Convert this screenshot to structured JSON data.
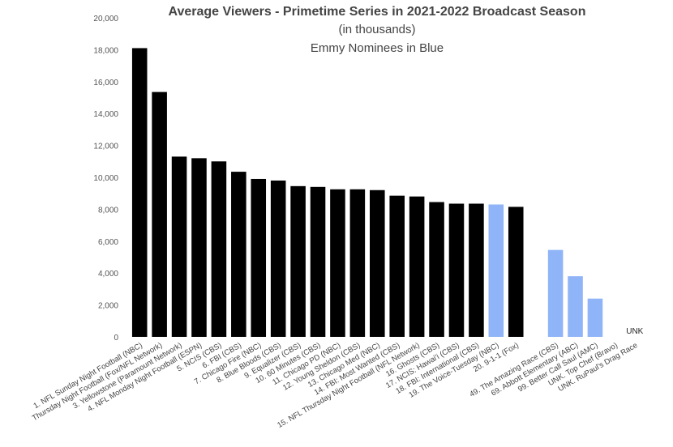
{
  "chart_data": {
    "type": "bar",
    "title": "Average Viewers - Primetime Series in 2021-2022 Broadcast Season",
    "subtitle": "(in thousands)",
    "subtitle2": "Emmy Nominees in Blue",
    "ylim": [
      0,
      20000
    ],
    "yticks": [
      "0",
      "2,000",
      "4,000",
      "6,000",
      "8,000",
      "10,000",
      "12,000",
      "14,000",
      "16,000",
      "18,000",
      "20,000"
    ],
    "grid": false,
    "legend": "none",
    "colors": {
      "default": "#000000",
      "nominee": "#8fb4f7"
    },
    "categories": [
      "1. NFL Sunday Night Football (NBC)",
      "Thursday Night Football (Fox/NFL Network)",
      "3. Yellowstone (Paramount Network)",
      "4. NFL Monday Night Football (ESPN)",
      "5. NCIS (CBS)",
      "6. FBI (CBS)",
      "7. Chicago Fire (NBC)",
      "8. Blue Bloods (CBS)",
      "9. Equalizer (CBS)",
      "10. 60 Minutes (CBS)",
      "11. Chicago PD (NBC)",
      "12. Young Sheldon (CBS)",
      "13. Chicago Med (NBC)",
      "14. FBI: Most Wanted (CBS)",
      "15. NFL Thursday Night Football (NFL Network)",
      "16. Ghosts (CBS)",
      "17. NCIS: Hawai'i (CBS)",
      "18. FBI: International (CBS)",
      "19. The Voice-Tuesday (NBC)",
      "20. 9-1-1 (Fox)",
      "",
      "49. The Amazing Race (CBS)",
      "69. Abbott Elementary (ABC)",
      "99. Better Call Saul (AMC)",
      "UNK. Top Chef (Bravo)",
      "UNK. RuPaul's Drag Race"
    ],
    "values": [
      18100,
      15350,
      11300,
      11200,
      11000,
      10350,
      9900,
      9800,
      9450,
      9400,
      9250,
      9250,
      9200,
      8850,
      8800,
      8450,
      8350,
      8350,
      8300,
      8150,
      null,
      5450,
      3800,
      2400,
      null,
      null
    ],
    "nominee": [
      false,
      false,
      false,
      false,
      false,
      false,
      false,
      false,
      false,
      false,
      false,
      false,
      false,
      false,
      false,
      false,
      false,
      false,
      true,
      false,
      false,
      true,
      true,
      true,
      false,
      false
    ],
    "data_labels": [
      "",
      "",
      "",
      "",
      "",
      "",
      "",
      "",
      "",
      "",
      "",
      "",
      "",
      "",
      "",
      "",
      "",
      "",
      "",
      "",
      "",
      "",
      "",
      "",
      "",
      "UNK"
    ]
  }
}
